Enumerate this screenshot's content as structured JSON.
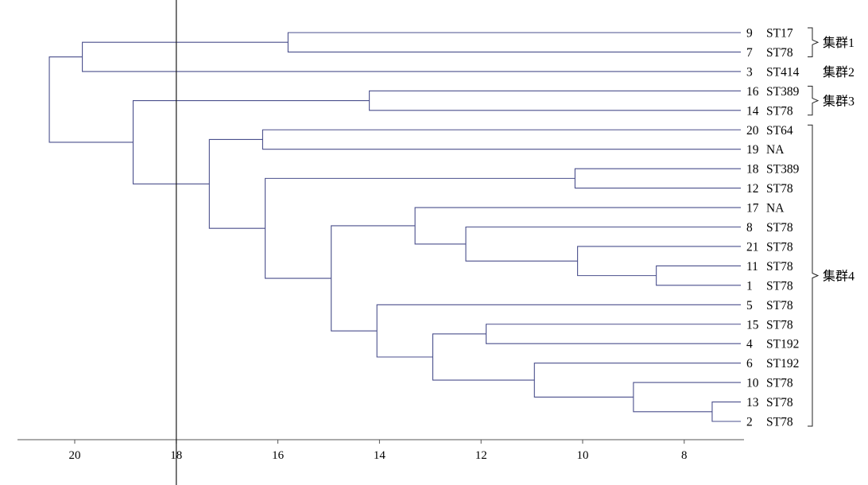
{
  "chart_data": {
    "type": "dendrogram",
    "axis": {
      "ticks": [
        20,
        18,
        16,
        14,
        12,
        10,
        8
      ],
      "range": [
        21.1,
        6.75
      ],
      "reference_line": 18
    },
    "leaves": [
      {
        "id": "9",
        "st": "ST17"
      },
      {
        "id": "7",
        "st": "ST78"
      },
      {
        "id": "3",
        "st": "ST414"
      },
      {
        "id": "16",
        "st": "ST389"
      },
      {
        "id": "14",
        "st": "ST78"
      },
      {
        "id": "20",
        "st": "ST64"
      },
      {
        "id": "19",
        "st": "NA"
      },
      {
        "id": "18",
        "st": "ST389"
      },
      {
        "id": "12",
        "st": "ST78"
      },
      {
        "id": "17",
        "st": "NA"
      },
      {
        "id": "8",
        "st": "ST78"
      },
      {
        "id": "21",
        "st": "ST78"
      },
      {
        "id": "11",
        "st": "ST78"
      },
      {
        "id": "1",
        "st": "ST78"
      },
      {
        "id": "5",
        "st": "ST78"
      },
      {
        "id": "15",
        "st": "ST78"
      },
      {
        "id": "4",
        "st": "ST192"
      },
      {
        "id": "6",
        "st": "ST192"
      },
      {
        "id": "10",
        "st": "ST78"
      },
      {
        "id": "13",
        "st": "ST78"
      },
      {
        "id": "2",
        "st": "ST78"
      }
    ],
    "merges": [
      {
        "a": "L0",
        "b": "L1",
        "height": 15.8
      },
      {
        "a": "M0",
        "b": "L2",
        "height": 19.85
      },
      {
        "a": "L3",
        "b": "L4",
        "height": 14.2
      },
      {
        "a": "L5",
        "b": "L6",
        "height": 16.3
      },
      {
        "a": "L7",
        "b": "L8",
        "height": 10.15
      },
      {
        "a": "L12",
        "b": "L13",
        "height": 8.55
      },
      {
        "a": "L11",
        "b": "M5",
        "height": 10.1
      },
      {
        "a": "L10",
        "b": "M6",
        "height": 12.3
      },
      {
        "a": "L9",
        "b": "M7",
        "height": 13.3
      },
      {
        "a": "L15",
        "b": "L16",
        "height": 11.9
      },
      {
        "a": "L19",
        "b": "L20",
        "height": 7.45
      },
      {
        "a": "L18",
        "b": "M10",
        "height": 9.0
      },
      {
        "a": "L17",
        "b": "M11",
        "height": 10.95
      },
      {
        "a": "M9",
        "b": "M12",
        "height": 12.95
      },
      {
        "a": "L14",
        "b": "M13",
        "height": 14.05
      },
      {
        "a": "M8",
        "b": "M14",
        "height": 14.95
      },
      {
        "a": "M4",
        "b": "M15",
        "height": 16.25
      },
      {
        "a": "M3",
        "b": "M16",
        "height": 17.35
      },
      {
        "a": "M2",
        "b": "M17",
        "height": 18.85
      },
      {
        "a": "M1",
        "b": "M18",
        "height": 20.5
      }
    ],
    "clusters": [
      {
        "label": "集群1",
        "from": 0,
        "to": 1,
        "bracket": true
      },
      {
        "label": "集群2",
        "from": 2,
        "to": 2,
        "bracket": false
      },
      {
        "label": "集群3",
        "from": 3,
        "to": 4,
        "bracket": true
      },
      {
        "label": "集群4",
        "from": 5,
        "to": 20,
        "bracket": true
      }
    ],
    "colors": {
      "branch": "#4a4f8c",
      "axis": "#555555",
      "reference_line": "#1a1a1a",
      "bracket": "#222222",
      "text": "#000000"
    }
  }
}
